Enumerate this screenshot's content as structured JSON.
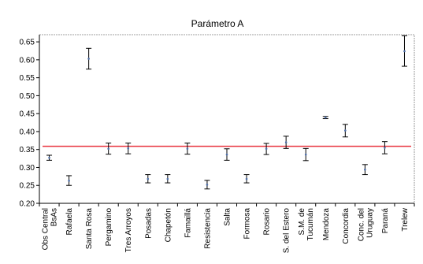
{
  "chart_data": {
    "type": "scatter",
    "title": "Parámetro A",
    "xlabel": "",
    "ylabel": "",
    "ylim": [
      0.2,
      0.67
    ],
    "yticks": [
      0.2,
      0.25,
      0.3,
      0.35,
      0.4,
      0.45,
      0.5,
      0.55,
      0.6,
      0.65
    ],
    "grid": false,
    "reference_line": 0.359,
    "colors": {
      "point": "#4f6fa8",
      "errorbar": "#000000",
      "reference_line": "#e8323c",
      "frame": "#808080"
    },
    "categories": [
      "Obs Central BsAs",
      "Rafaela",
      "Santa Rosa",
      "Pergamino",
      "Tres Arroyos",
      "Posadas",
      "Chapetón",
      "Famaillá",
      "Resistencia",
      "Salta",
      "Formosa",
      "Rosario",
      "S. del Estero",
      "S.M. de Tucumán",
      "Mendoza",
      "Concordia",
      "Conc. del Uruguay",
      "Paraná",
      "Trelew"
    ],
    "series": [
      {
        "values": [
          0.327,
          0.263,
          0.603,
          0.352,
          0.353,
          0.268,
          0.268,
          0.352,
          0.252,
          0.336,
          0.268,
          0.352,
          0.37,
          0.336,
          0.439,
          0.403,
          0.294,
          0.355,
          0.624
        ],
        "lower": [
          0.32,
          0.25,
          0.574,
          0.337,
          0.338,
          0.257,
          0.257,
          0.337,
          0.24,
          0.32,
          0.257,
          0.336,
          0.353,
          0.319,
          0.436,
          0.385,
          0.28,
          0.338,
          0.582
        ],
        "upper": [
          0.334,
          0.277,
          0.632,
          0.368,
          0.368,
          0.28,
          0.28,
          0.368,
          0.264,
          0.352,
          0.28,
          0.367,
          0.387,
          0.353,
          0.442,
          0.42,
          0.308,
          0.372,
          0.667
        ]
      }
    ]
  }
}
